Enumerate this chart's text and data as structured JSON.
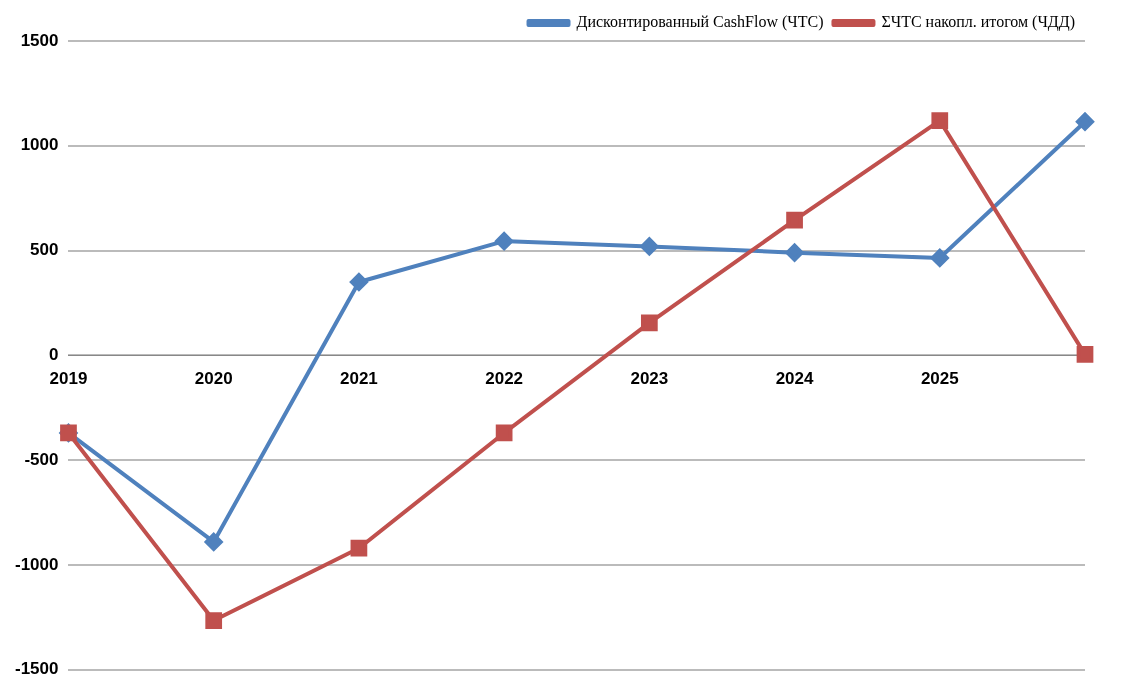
{
  "chart_data": {
    "type": "line",
    "categories": [
      "2019",
      "2020",
      "2021",
      "2022",
      "2023",
      "2024",
      "2025",
      null
    ],
    "series": [
      {
        "name": "Дисконтированный CashFlow (ЧТС)",
        "color": "#4f81bd",
        "marker": "diamond",
        "values": [
          -370,
          -890,
          350,
          545,
          520,
          490,
          465,
          1115
        ]
      },
      {
        "name": "ΣЧТС накопл. итогом (ЧДД)",
        "color": "#c0504d",
        "marker": "square",
        "values": [
          -370,
          -1265,
          -920,
          -370,
          155,
          645,
          1120,
          5
        ]
      }
    ],
    "ylim": [
      -1500,
      1500
    ],
    "yticks": [
      -1500,
      -1000,
      -500,
      0,
      500,
      1000,
      1500
    ],
    "grid": "y",
    "legend": "top right",
    "line_style": "solid"
  }
}
